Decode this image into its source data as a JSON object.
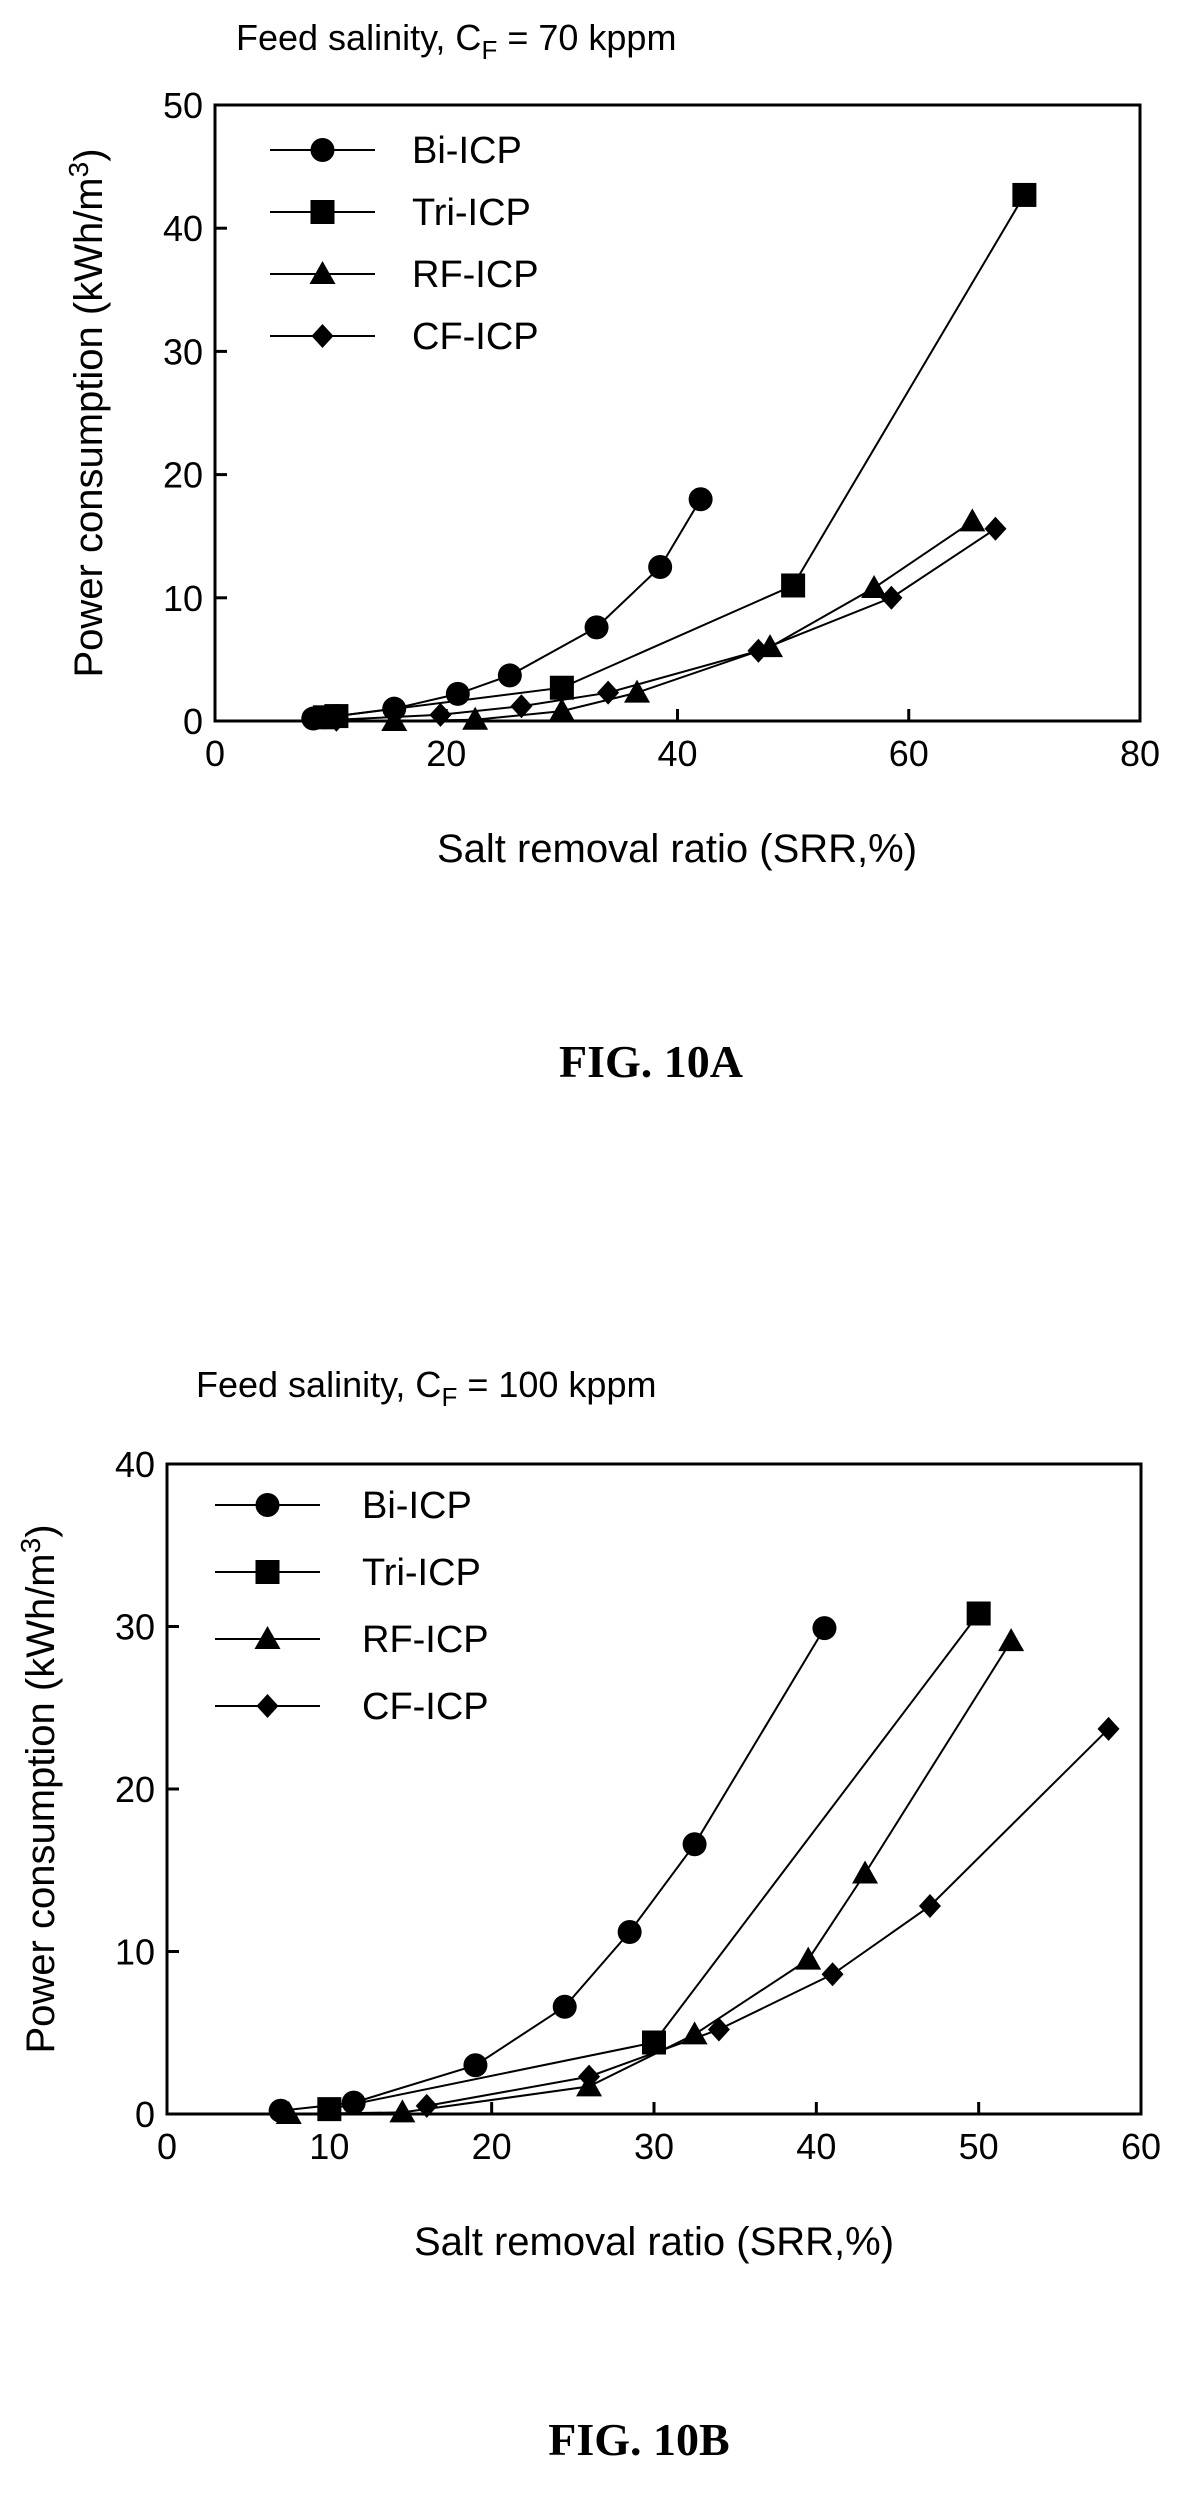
{
  "chart_data": [
    {
      "type": "line",
      "title": "Feed salinity, C",
      "title_subscript": "F",
      "title_suffix": " = 70 kppm",
      "xlabel": "Salt removal ratio (SRR,%)",
      "ylabel": "Power consumption (kWh/m",
      "ylabel_superscript": "3",
      "ylabel_suffix": ")",
      "xlim": [
        0,
        80
      ],
      "ylim": [
        0,
        50
      ],
      "xticks": [
        0,
        20,
        40,
        60,
        80
      ],
      "yticks": [
        0,
        10,
        20,
        30,
        40,
        50
      ],
      "legend_position": "top-left",
      "grid": false,
      "caption": "FIG. 10A",
      "series": [
        {
          "name": "Bi-ICP",
          "marker": "circle",
          "points": [
            [
              8.5,
              0.2
            ],
            [
              9.5,
              0.3
            ],
            [
              10.5,
              0.4
            ],
            [
              15.5,
              1.0
            ],
            [
              21,
              2.2
            ],
            [
              25.5,
              3.7
            ],
            [
              33,
              7.6
            ],
            [
              38.5,
              12.5
            ],
            [
              42,
              18.0
            ]
          ]
        },
        {
          "name": "Tri-ICP",
          "marker": "square",
          "points": [
            [
              9.5,
              0.3
            ],
            [
              10.5,
              0.4
            ],
            [
              30,
              2.7
            ],
            [
              50,
              11.0
            ],
            [
              70,
              42.7
            ]
          ]
        },
        {
          "name": "RF-ICP",
          "marker": "triangle",
          "points": [
            [
              15.5,
              0.0
            ],
            [
              22.5,
              0.1
            ],
            [
              30,
              0.8
            ],
            [
              36.5,
              2.3
            ],
            [
              48,
              6.0
            ],
            [
              57,
              10.8
            ],
            [
              65.5,
              16.2
            ]
          ]
        },
        {
          "name": "CF-ICP",
          "marker": "diamond",
          "points": [
            [
              10.5,
              0.1
            ],
            [
              19.5,
              0.5
            ],
            [
              26.5,
              1.2
            ],
            [
              34,
              2.3
            ],
            [
              47,
              5.7
            ],
            [
              58.5,
              10.0
            ],
            [
              67.5,
              15.6
            ]
          ]
        }
      ]
    },
    {
      "type": "line",
      "title": "Feed salinity, C",
      "title_subscript": "F",
      "title_suffix": " = 100 kppm",
      "xlabel": "Salt removal ratio (SRR,%)",
      "ylabel": "Power consumption (kWh/m",
      "ylabel_superscript": "3",
      "ylabel_suffix": ")",
      "xlim": [
        0,
        60
      ],
      "ylim": [
        0,
        40
      ],
      "xticks": [
        0,
        10,
        20,
        30,
        40,
        50,
        60
      ],
      "yticks": [
        0,
        10,
        20,
        30,
        40
      ],
      "legend_position": "top-left",
      "grid": false,
      "caption": "FIG. 10B",
      "series": [
        {
          "name": "Bi-ICP",
          "marker": "circle",
          "points": [
            [
              7,
              0.2
            ],
            [
              11.5,
              0.7
            ],
            [
              19,
              3.0
            ],
            [
              24.5,
              6.6
            ],
            [
              28.5,
              11.2
            ],
            [
              32.5,
              16.6
            ],
            [
              40.5,
              29.9
            ]
          ]
        },
        {
          "name": "Tri-ICP",
          "marker": "square",
          "points": [
            [
              10,
              0.3
            ],
            [
              30,
              4.4
            ],
            [
              50,
              30.8
            ]
          ]
        },
        {
          "name": "RF-ICP",
          "marker": "triangle",
          "points": [
            [
              7.5,
              0.0
            ],
            [
              14.5,
              0.1
            ],
            [
              26,
              1.7
            ],
            [
              32.5,
              4.9
            ],
            [
              39.5,
              9.5
            ],
            [
              43,
              14.8
            ],
            [
              52,
              29.1
            ]
          ]
        },
        {
          "name": "CF-ICP",
          "marker": "diamond",
          "points": [
            [
              16,
              0.5
            ],
            [
              26,
              2.3
            ],
            [
              34,
              5.2
            ],
            [
              41,
              8.6
            ],
            [
              47,
              12.8
            ],
            [
              58,
              23.7
            ]
          ]
        }
      ]
    }
  ]
}
